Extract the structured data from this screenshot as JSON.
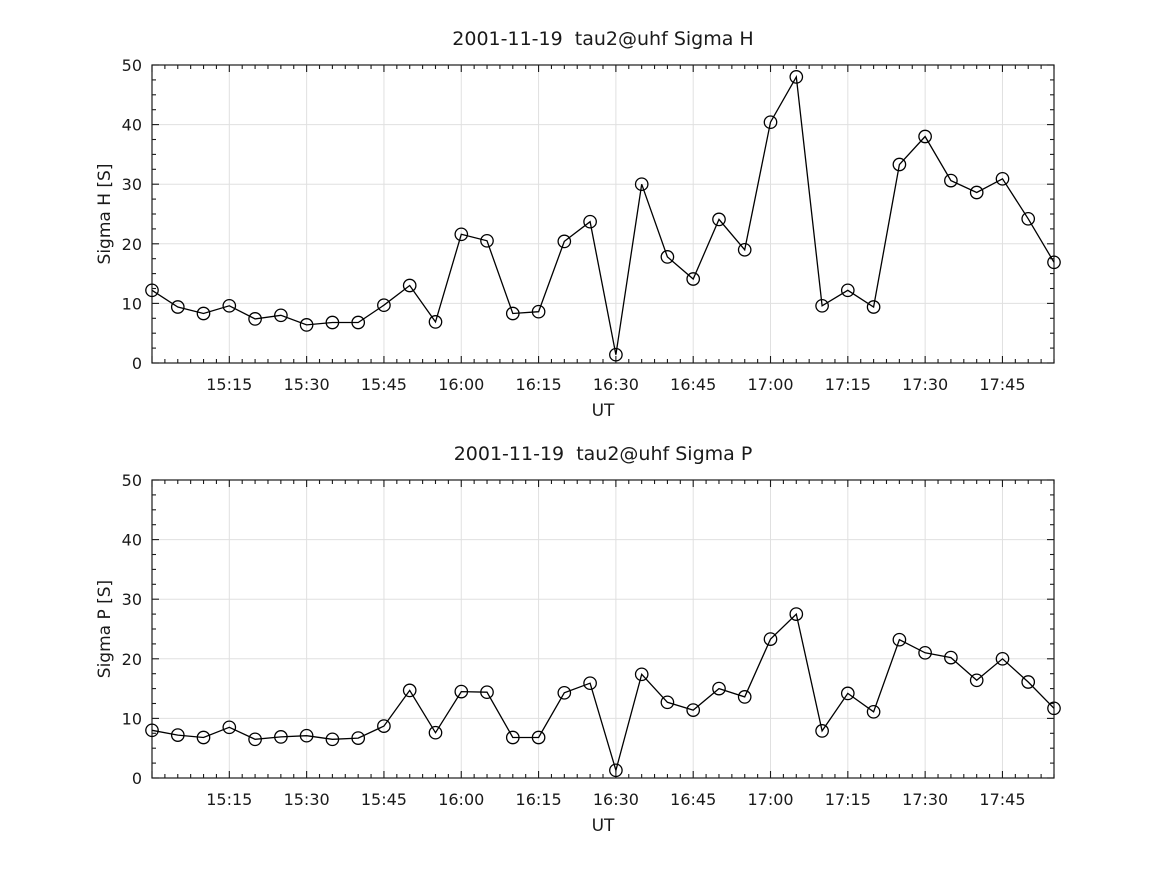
{
  "style": {
    "background": "#ffffff",
    "text_color": "#1a1a1a",
    "grid_color": "#e0e0e0",
    "line_color": "#000000",
    "marker": "open-circle"
  },
  "chart_data": [
    {
      "type": "line",
      "title": "2001-11-19  tau2@uhf Sigma H",
      "xlabel": "UT",
      "ylabel": "Sigma H [S]",
      "ylim": [
        0,
        50
      ],
      "yticks": [
        0,
        10,
        20,
        30,
        40,
        50
      ],
      "y_minor_step": 2.5,
      "xlim": [
        "15:00",
        "17:55"
      ],
      "x_major_step_min": 15,
      "x_minor_step_min": 2.5,
      "xtick_labels": [
        "15:15",
        "15:30",
        "15:45",
        "16:00",
        "16:15",
        "16:30",
        "16:45",
        "17:00",
        "17:15",
        "17:30",
        "17:45"
      ],
      "grid": true,
      "legend": "none",
      "x": [
        "15:00",
        "15:05",
        "15:10",
        "15:15",
        "15:20",
        "15:25",
        "15:30",
        "15:35",
        "15:40",
        "15:45",
        "15:50",
        "15:55",
        "16:00",
        "16:05",
        "16:10",
        "16:15",
        "16:20",
        "16:25",
        "16:30",
        "16:35",
        "16:40",
        "16:45",
        "16:50",
        "16:55",
        "17:00",
        "17:05",
        "17:10",
        "17:15",
        "17:20",
        "17:25",
        "17:30",
        "17:35",
        "17:40",
        "17:45",
        "17:50",
        "17:55"
      ],
      "y": [
        12.2,
        9.4,
        8.3,
        9.6,
        7.4,
        8.0,
        6.4,
        6.8,
        6.8,
        9.7,
        13.0,
        6.9,
        21.6,
        20.5,
        8.3,
        8.6,
        20.4,
        23.7,
        1.4,
        30.0,
        17.8,
        14.1,
        24.1,
        19.0,
        40.4,
        48.0,
        9.6,
        12.2,
        9.4,
        33.3,
        38.0,
        30.6,
        28.6,
        30.9,
        24.2,
        16.9
      ]
    },
    {
      "type": "line",
      "title": "2001-11-19  tau2@uhf Sigma P",
      "xlabel": "UT",
      "ylabel": "Sigma P [S]",
      "ylim": [
        0,
        50
      ],
      "yticks": [
        0,
        10,
        20,
        30,
        40,
        50
      ],
      "y_minor_step": 2.5,
      "xlim": [
        "15:00",
        "17:55"
      ],
      "x_major_step_min": 15,
      "x_minor_step_min": 2.5,
      "xtick_labels": [
        "15:15",
        "15:30",
        "15:45",
        "16:00",
        "16:15",
        "16:30",
        "16:45",
        "17:00",
        "17:15",
        "17:30",
        "17:45"
      ],
      "grid": true,
      "legend": "none",
      "x": [
        "15:00",
        "15:05",
        "15:10",
        "15:15",
        "15:20",
        "15:25",
        "15:30",
        "15:35",
        "15:40",
        "15:45",
        "15:50",
        "15:55",
        "16:00",
        "16:05",
        "16:10",
        "16:15",
        "16:20",
        "16:25",
        "16:30",
        "16:35",
        "16:40",
        "16:45",
        "16:50",
        "16:55",
        "17:00",
        "17:05",
        "17:10",
        "17:15",
        "17:20",
        "17:25",
        "17:30",
        "17:35",
        "17:40",
        "17:45",
        "17:50",
        "17:55"
      ],
      "y": [
        8.0,
        7.2,
        6.8,
        8.5,
        6.5,
        6.9,
        7.1,
        6.5,
        6.7,
        8.7,
        14.7,
        7.6,
        14.5,
        14.4,
        6.8,
        6.8,
        14.3,
        15.9,
        1.3,
        17.4,
        12.7,
        11.4,
        15.0,
        13.6,
        23.3,
        27.5,
        7.9,
        14.2,
        11.1,
        23.2,
        21.0,
        20.2,
        16.4,
        20.0,
        16.1,
        11.7
      ]
    }
  ]
}
